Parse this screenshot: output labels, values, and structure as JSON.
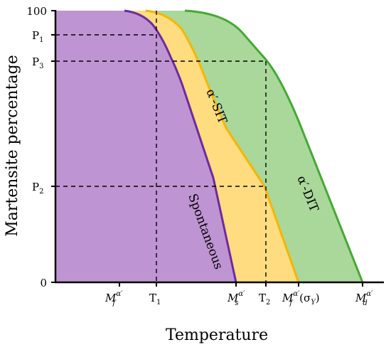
{
  "figure": {
    "y_axis_title": "Martensite percentage",
    "x_axis_title": "Temperature",
    "y_ticks": {
      "top": "100",
      "p1": "P",
      "p1_sub": "1",
      "p3": "P",
      "p3_sub": "3",
      "p2": "P",
      "p2_sub": "2",
      "bottom": "0"
    },
    "x_ticks": {
      "mf": "M",
      "mf_sub": "f",
      "mf_sup": "α′",
      "t1": "T",
      "t1_sub": "1",
      "ms": "M",
      "ms_sub": "s",
      "ms_sup": "α′",
      "t2": "T",
      "t2_sub": "2",
      "mf2": "M",
      "mf2_sub": "f",
      "mf2_sup": "α′",
      "mf2_paren": "(σ",
      "mf2_paren_sub": "Y",
      "mf2_paren_close": ")",
      "md": "M",
      "md_sub": "d",
      "md_sup": "α′"
    },
    "regions": {
      "spontaneous": "Spontaneous",
      "sit": "α′-SIT",
      "dit": "α′-DIT"
    },
    "colors": {
      "purple_fill": "#BF94D2",
      "purple_line": "#6E2AA0",
      "yellow_fill": "#FFDC7F",
      "yellow_line": "#F7B500",
      "green_fill": "#A9D89A",
      "green_line": "#44AA33"
    }
  }
}
